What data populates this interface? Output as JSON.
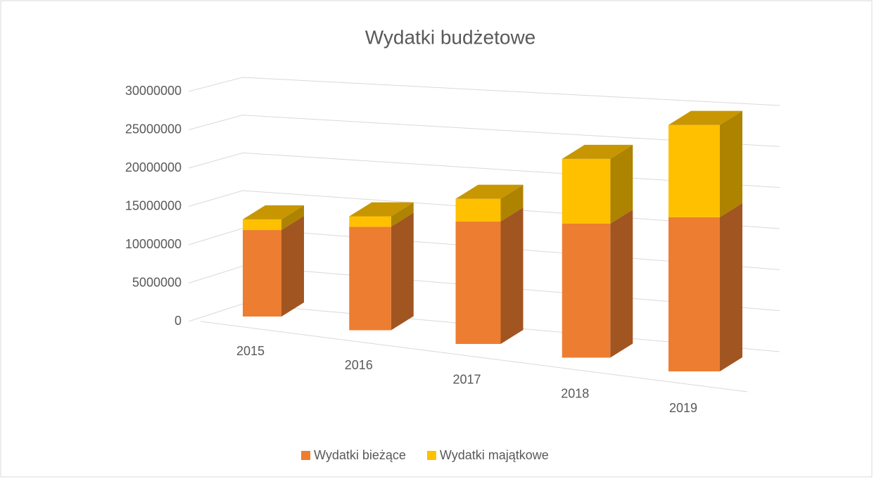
{
  "chart_data": {
    "type": "bar3d_stacked",
    "title": "Wydatki budżetowe",
    "categories": [
      "2015",
      "2016",
      "2017",
      "2018",
      "2019"
    ],
    "series": [
      {
        "name": "Wydatki bieżące",
        "color": "#ED7D31",
        "values": [
          11300000,
          12900000,
          14600000,
          15300000,
          16900000
        ]
      },
      {
        "name": "Wydatki majątkowe",
        "color": "#FFC000",
        "values": [
          1400000,
          1300000,
          2700000,
          7400000,
          10100000
        ]
      }
    ],
    "ylim": [
      0,
      30000000
    ],
    "yticks": [
      0,
      5000000,
      10000000,
      15000000,
      20000000,
      25000000,
      30000000
    ],
    "grid": true,
    "legend": "bottom"
  }
}
